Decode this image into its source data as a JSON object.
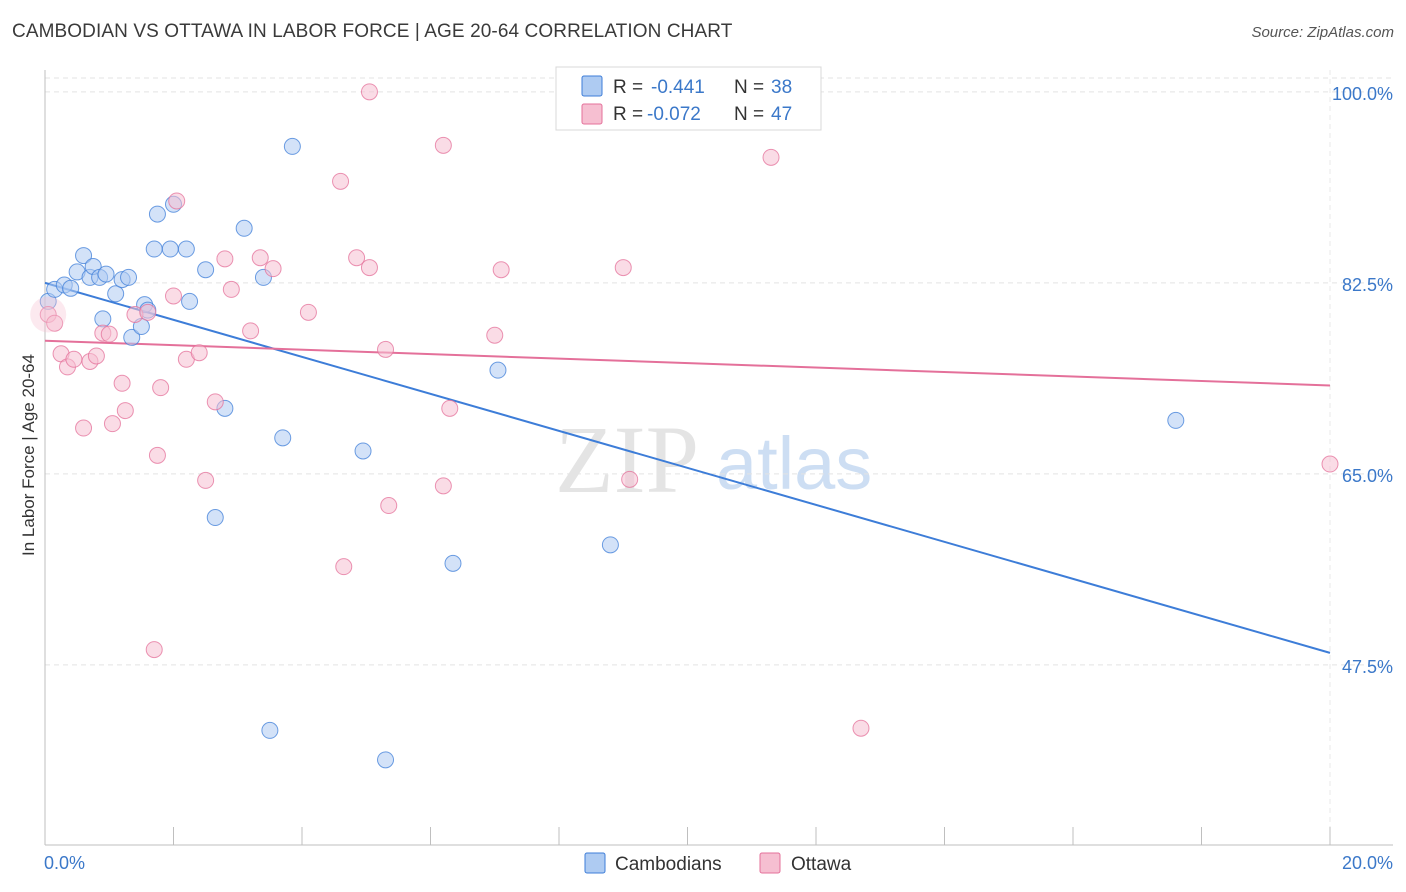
{
  "header": {
    "title": "CAMBODIAN VS OTTAWA IN LABOR FORCE | AGE 20-64 CORRELATION CHART",
    "source": "Source: ZipAtlas.com"
  },
  "watermark": {
    "zip": "ZIP",
    "atlas": "atlas"
  },
  "colors": {
    "blue": "#3d7dd8",
    "blue_fill": "#aecbf2",
    "pink": "#e4709a",
    "pink_fill": "#f6bfd1",
    "grid": "#e3e3e3",
    "tick_text": "#3b78c9"
  },
  "chart_data": {
    "type": "scatter",
    "title": "CAMBODIAN VS OTTAWA IN LABOR FORCE | AGE 20-64 CORRELATION CHART",
    "xlabel": "",
    "ylabel": "In Labor Force | Age 20-64",
    "xlim": [
      0.0,
      20.0
    ],
    "ylim": [
      31.0,
      102.0
    ],
    "x_tick_labels": [
      "0.0%",
      "20.0%"
    ],
    "y_ticks": [
      100.0,
      82.5,
      65.0,
      47.5
    ],
    "y_tick_labels": [
      "100.0%",
      "82.5%",
      "65.0%",
      "47.5%"
    ],
    "grid": true,
    "legend": {
      "position": "top-center",
      "rows": [
        {
          "r_label": "R = ",
          "r_value": "-0.441",
          "n_label": "N = ",
          "n_value": "38"
        },
        {
          "r_label": "R = ",
          "r_value": "-0.072",
          "n_label": "N = ",
          "n_value": "47"
        }
      ]
    },
    "bottom_legend": [
      "Cambodians",
      "Ottawa"
    ],
    "series": [
      {
        "name": "Cambodians",
        "color": "#3d7dd8",
        "trend": {
          "x": [
            0.0,
            20.0
          ],
          "y": [
            82.5,
            48.6
          ]
        },
        "points": [
          [
            0.05,
            80.8
          ],
          [
            0.15,
            81.9
          ],
          [
            0.3,
            82.3
          ],
          [
            0.4,
            82.0
          ],
          [
            0.5,
            83.5
          ],
          [
            0.6,
            85.0
          ],
          [
            0.7,
            83.0
          ],
          [
            0.75,
            84.0
          ],
          [
            0.85,
            83.0
          ],
          [
            0.95,
            83.3
          ],
          [
            1.1,
            81.5
          ],
          [
            1.2,
            82.8
          ],
          [
            1.3,
            83.0
          ],
          [
            0.9,
            79.2
          ],
          [
            1.35,
            77.5
          ],
          [
            1.5,
            78.5
          ],
          [
            1.55,
            80.5
          ],
          [
            1.6,
            80.0
          ],
          [
            1.7,
            85.6
          ],
          [
            1.75,
            88.8
          ],
          [
            1.95,
            85.6
          ],
          [
            2.0,
            89.7
          ],
          [
            2.2,
            85.6
          ],
          [
            2.25,
            80.8
          ],
          [
            2.5,
            83.7
          ],
          [
            2.8,
            71.0
          ],
          [
            3.1,
            87.5
          ],
          [
            3.4,
            83.0
          ],
          [
            3.85,
            95.0
          ],
          [
            3.7,
            68.3
          ],
          [
            4.95,
            67.1
          ],
          [
            2.65,
            61.0
          ],
          [
            3.5,
            41.5
          ],
          [
            5.3,
            38.8
          ],
          [
            7.05,
            74.5
          ],
          [
            6.35,
            56.8
          ],
          [
            8.8,
            58.5
          ],
          [
            17.6,
            69.9
          ]
        ]
      },
      {
        "name": "Ottawa",
        "color": "#e4709a",
        "trend": {
          "x": [
            0.0,
            20.0
          ],
          "y": [
            77.2,
            73.1
          ]
        },
        "points": [
          [
            0.05,
            79.6
          ],
          [
            0.15,
            78.8
          ],
          [
            0.25,
            76.0
          ],
          [
            0.35,
            74.8
          ],
          [
            0.45,
            75.5
          ],
          [
            0.6,
            69.2
          ],
          [
            0.7,
            75.3
          ],
          [
            0.8,
            75.8
          ],
          [
            0.9,
            77.9
          ],
          [
            1.0,
            77.8
          ],
          [
            1.05,
            69.6
          ],
          [
            1.2,
            73.3
          ],
          [
            1.25,
            70.8
          ],
          [
            1.4,
            79.6
          ],
          [
            1.6,
            79.8
          ],
          [
            1.7,
            48.9
          ],
          [
            1.75,
            66.7
          ],
          [
            1.8,
            72.9
          ],
          [
            2.0,
            81.3
          ],
          [
            2.05,
            90.0
          ],
          [
            2.2,
            75.5
          ],
          [
            2.4,
            76.1
          ],
          [
            2.5,
            64.4
          ],
          [
            2.65,
            71.6
          ],
          [
            2.8,
            84.7
          ],
          [
            2.9,
            81.9
          ],
          [
            3.2,
            78.1
          ],
          [
            3.35,
            84.8
          ],
          [
            3.55,
            83.8
          ],
          [
            4.1,
            79.8
          ],
          [
            4.6,
            91.8
          ],
          [
            4.65,
            56.5
          ],
          [
            4.85,
            84.8
          ],
          [
            5.05,
            83.9
          ],
          [
            5.3,
            76.4
          ],
          [
            5.35,
            62.1
          ],
          [
            5.05,
            100.0
          ],
          [
            6.2,
            95.1
          ],
          [
            6.3,
            71.0
          ],
          [
            6.2,
            63.9
          ],
          [
            7.0,
            77.7
          ],
          [
            7.1,
            83.7
          ],
          [
            9.0,
            83.9
          ],
          [
            9.1,
            64.5
          ],
          [
            11.3,
            94.0
          ],
          [
            12.7,
            41.7
          ],
          [
            20.0,
            65.9
          ]
        ]
      }
    ]
  }
}
